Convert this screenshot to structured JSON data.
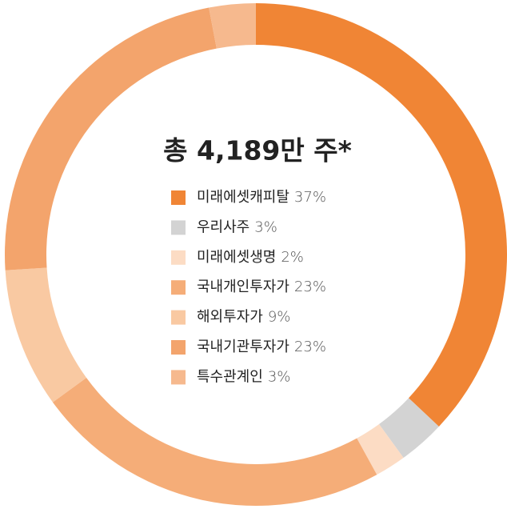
{
  "chart_data": {
    "type": "pie",
    "title": "총 4,189만 주*",
    "categories": [
      "미래에셋캐피탈",
      "우리사주",
      "미래에셋생명",
      "국내개인투자가",
      "해외투자가",
      "국내기관투자가",
      "특수관계인"
    ],
    "values": [
      37,
      3,
      2,
      23,
      9,
      23,
      3
    ],
    "value_labels": [
      "37%",
      "3%",
      "2%",
      "23%",
      "9%",
      "23%",
      "3%"
    ],
    "colors": [
      "#f08535",
      "#d3d3d3",
      "#fcdcc4",
      "#f5ad78",
      "#f9c9a2",
      "#f3a46c",
      "#f6b98e"
    ]
  }
}
